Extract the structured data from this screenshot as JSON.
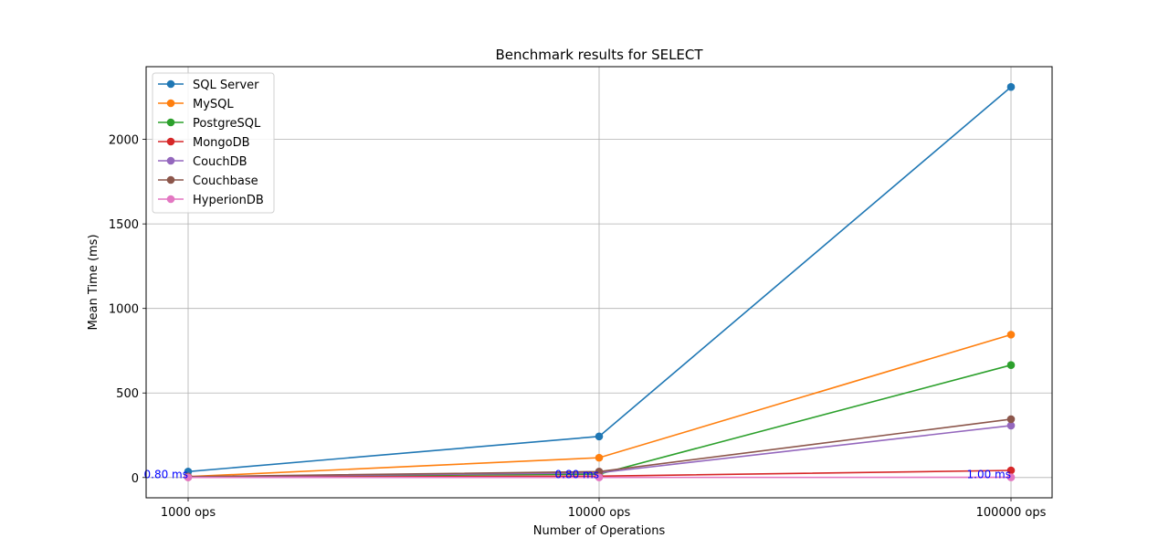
{
  "chart_data": {
    "type": "line",
    "title": "Benchmark results for SELECT",
    "xlabel": "Number of Operations",
    "ylabel": "Mean Time (ms)",
    "categories": [
      "1000 ops",
      "10000 ops",
      "100000 ops"
    ],
    "ylim": [
      -120,
      2430
    ],
    "yticks": [
      0,
      500,
      1000,
      1500,
      2000
    ],
    "grid": true,
    "legend_position": "top-left",
    "series": [
      {
        "name": "SQL Server",
        "color": "#1f77b4",
        "values": [
          35,
          243,
          2310
        ]
      },
      {
        "name": "MySQL",
        "color": "#ff7f0e",
        "values": [
          5,
          117,
          845
        ]
      },
      {
        "name": "PostgreSQL",
        "color": "#2ca02c",
        "values": [
          3,
          20,
          665
        ]
      },
      {
        "name": "MongoDB",
        "color": "#d62728",
        "values": [
          2,
          8,
          42
        ]
      },
      {
        "name": "CouchDB",
        "color": "#9467bd",
        "values": [
          4,
          28,
          307
        ]
      },
      {
        "name": "Couchbase",
        "color": "#8c564b",
        "values": [
          5,
          35,
          345
        ]
      },
      {
        "name": "HyperionDB",
        "color": "#e377c2",
        "values": [
          0.8,
          0.8,
          1.0
        ]
      }
    ],
    "annotations": [
      {
        "text": "0.80 ms",
        "x": "1000 ops",
        "y": 0.8,
        "color": "#0000ff"
      },
      {
        "text": "0.80 ms",
        "x": "10000 ops",
        "y": 0.8,
        "color": "#0000ff"
      },
      {
        "text": "1.00 ms",
        "x": "100000 ops",
        "y": 1.0,
        "color": "#0000ff"
      }
    ]
  }
}
